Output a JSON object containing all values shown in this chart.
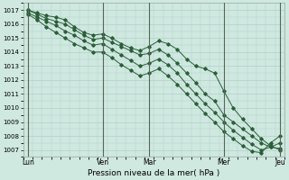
{
  "title": "",
  "xlabel": "Pression niveau de la mer( hPa )",
  "ylim": [
    1006.5,
    1017.5
  ],
  "yticks": [
    1007,
    1008,
    1009,
    1010,
    1011,
    1012,
    1013,
    1014,
    1015,
    1016,
    1017
  ],
  "bg_color": "#cfe8e0",
  "grid_color": "#b0d0c8",
  "line_color": "#2a5e38",
  "xtick_labels": [
    "Lun",
    "Ven",
    "Mar",
    "Mer",
    "Jeu"
  ],
  "xtick_positions": [
    0,
    8,
    13,
    21,
    27
  ],
  "vline_positions": [
    0,
    8,
    13,
    21,
    27
  ],
  "n_points": 28,
  "series1_x": [
    0,
    1,
    2,
    3,
    4,
    5,
    6,
    7,
    8,
    9,
    10,
    11,
    12,
    13,
    14,
    15,
    16,
    17,
    18,
    19,
    20,
    21,
    22,
    23,
    24,
    25,
    26,
    27
  ],
  "series1_y": [
    1017.0,
    1016.8,
    1016.6,
    1016.5,
    1016.3,
    1015.8,
    1015.4,
    1015.2,
    1015.3,
    1015.0,
    1014.6,
    1014.3,
    1014.1,
    1014.4,
    1014.8,
    1014.6,
    1014.2,
    1013.5,
    1013.0,
    1012.8,
    1012.5,
    1011.2,
    1010.0,
    1009.2,
    1008.5,
    1007.8,
    1007.3,
    1007.0
  ],
  "series2_x": [
    0,
    1,
    2,
    3,
    4,
    5,
    6,
    7,
    8,
    9,
    10,
    11,
    12,
    13,
    14,
    15,
    16,
    17,
    18,
    19,
    20,
    21,
    22,
    23,
    24,
    25,
    26,
    27
  ],
  "series2_y": [
    1017.0,
    1016.7,
    1016.4,
    1016.2,
    1016.0,
    1015.6,
    1015.2,
    1014.9,
    1015.0,
    1014.7,
    1014.4,
    1014.1,
    1013.8,
    1013.9,
    1014.2,
    1013.8,
    1013.2,
    1012.5,
    1011.8,
    1011.0,
    1010.5,
    1009.5,
    1009.0,
    1008.5,
    1008.0,
    1007.5,
    1007.2,
    1007.1
  ],
  "series3_x": [
    0,
    1,
    2,
    3,
    4,
    5,
    6,
    7,
    8,
    9,
    10,
    11,
    12,
    13,
    14,
    15,
    16,
    17,
    18,
    19,
    20,
    21,
    22,
    23,
    24,
    25,
    26,
    27
  ],
  "series3_y": [
    1016.8,
    1016.5,
    1016.2,
    1015.9,
    1015.5,
    1015.2,
    1014.8,
    1014.5,
    1014.6,
    1014.2,
    1013.8,
    1013.4,
    1013.0,
    1013.2,
    1013.5,
    1013.1,
    1012.5,
    1011.7,
    1011.0,
    1010.3,
    1009.7,
    1009.0,
    1008.4,
    1007.9,
    1007.4,
    1007.0,
    1007.2,
    1007.5
  ],
  "series4_x": [
    0,
    1,
    2,
    3,
    4,
    5,
    6,
    7,
    8,
    9,
    10,
    11,
    12,
    13,
    14,
    15,
    16,
    17,
    18,
    19,
    20,
    21,
    22,
    23,
    24,
    25,
    26,
    27
  ],
  "series4_y": [
    1016.7,
    1016.3,
    1015.8,
    1015.4,
    1015.0,
    1014.6,
    1014.3,
    1014.0,
    1014.0,
    1013.6,
    1013.1,
    1012.7,
    1012.3,
    1012.5,
    1012.8,
    1012.3,
    1011.7,
    1011.0,
    1010.3,
    1009.6,
    1009.0,
    1008.3,
    1007.8,
    1007.3,
    1006.9,
    1006.8,
    1007.5,
    1008.0
  ]
}
